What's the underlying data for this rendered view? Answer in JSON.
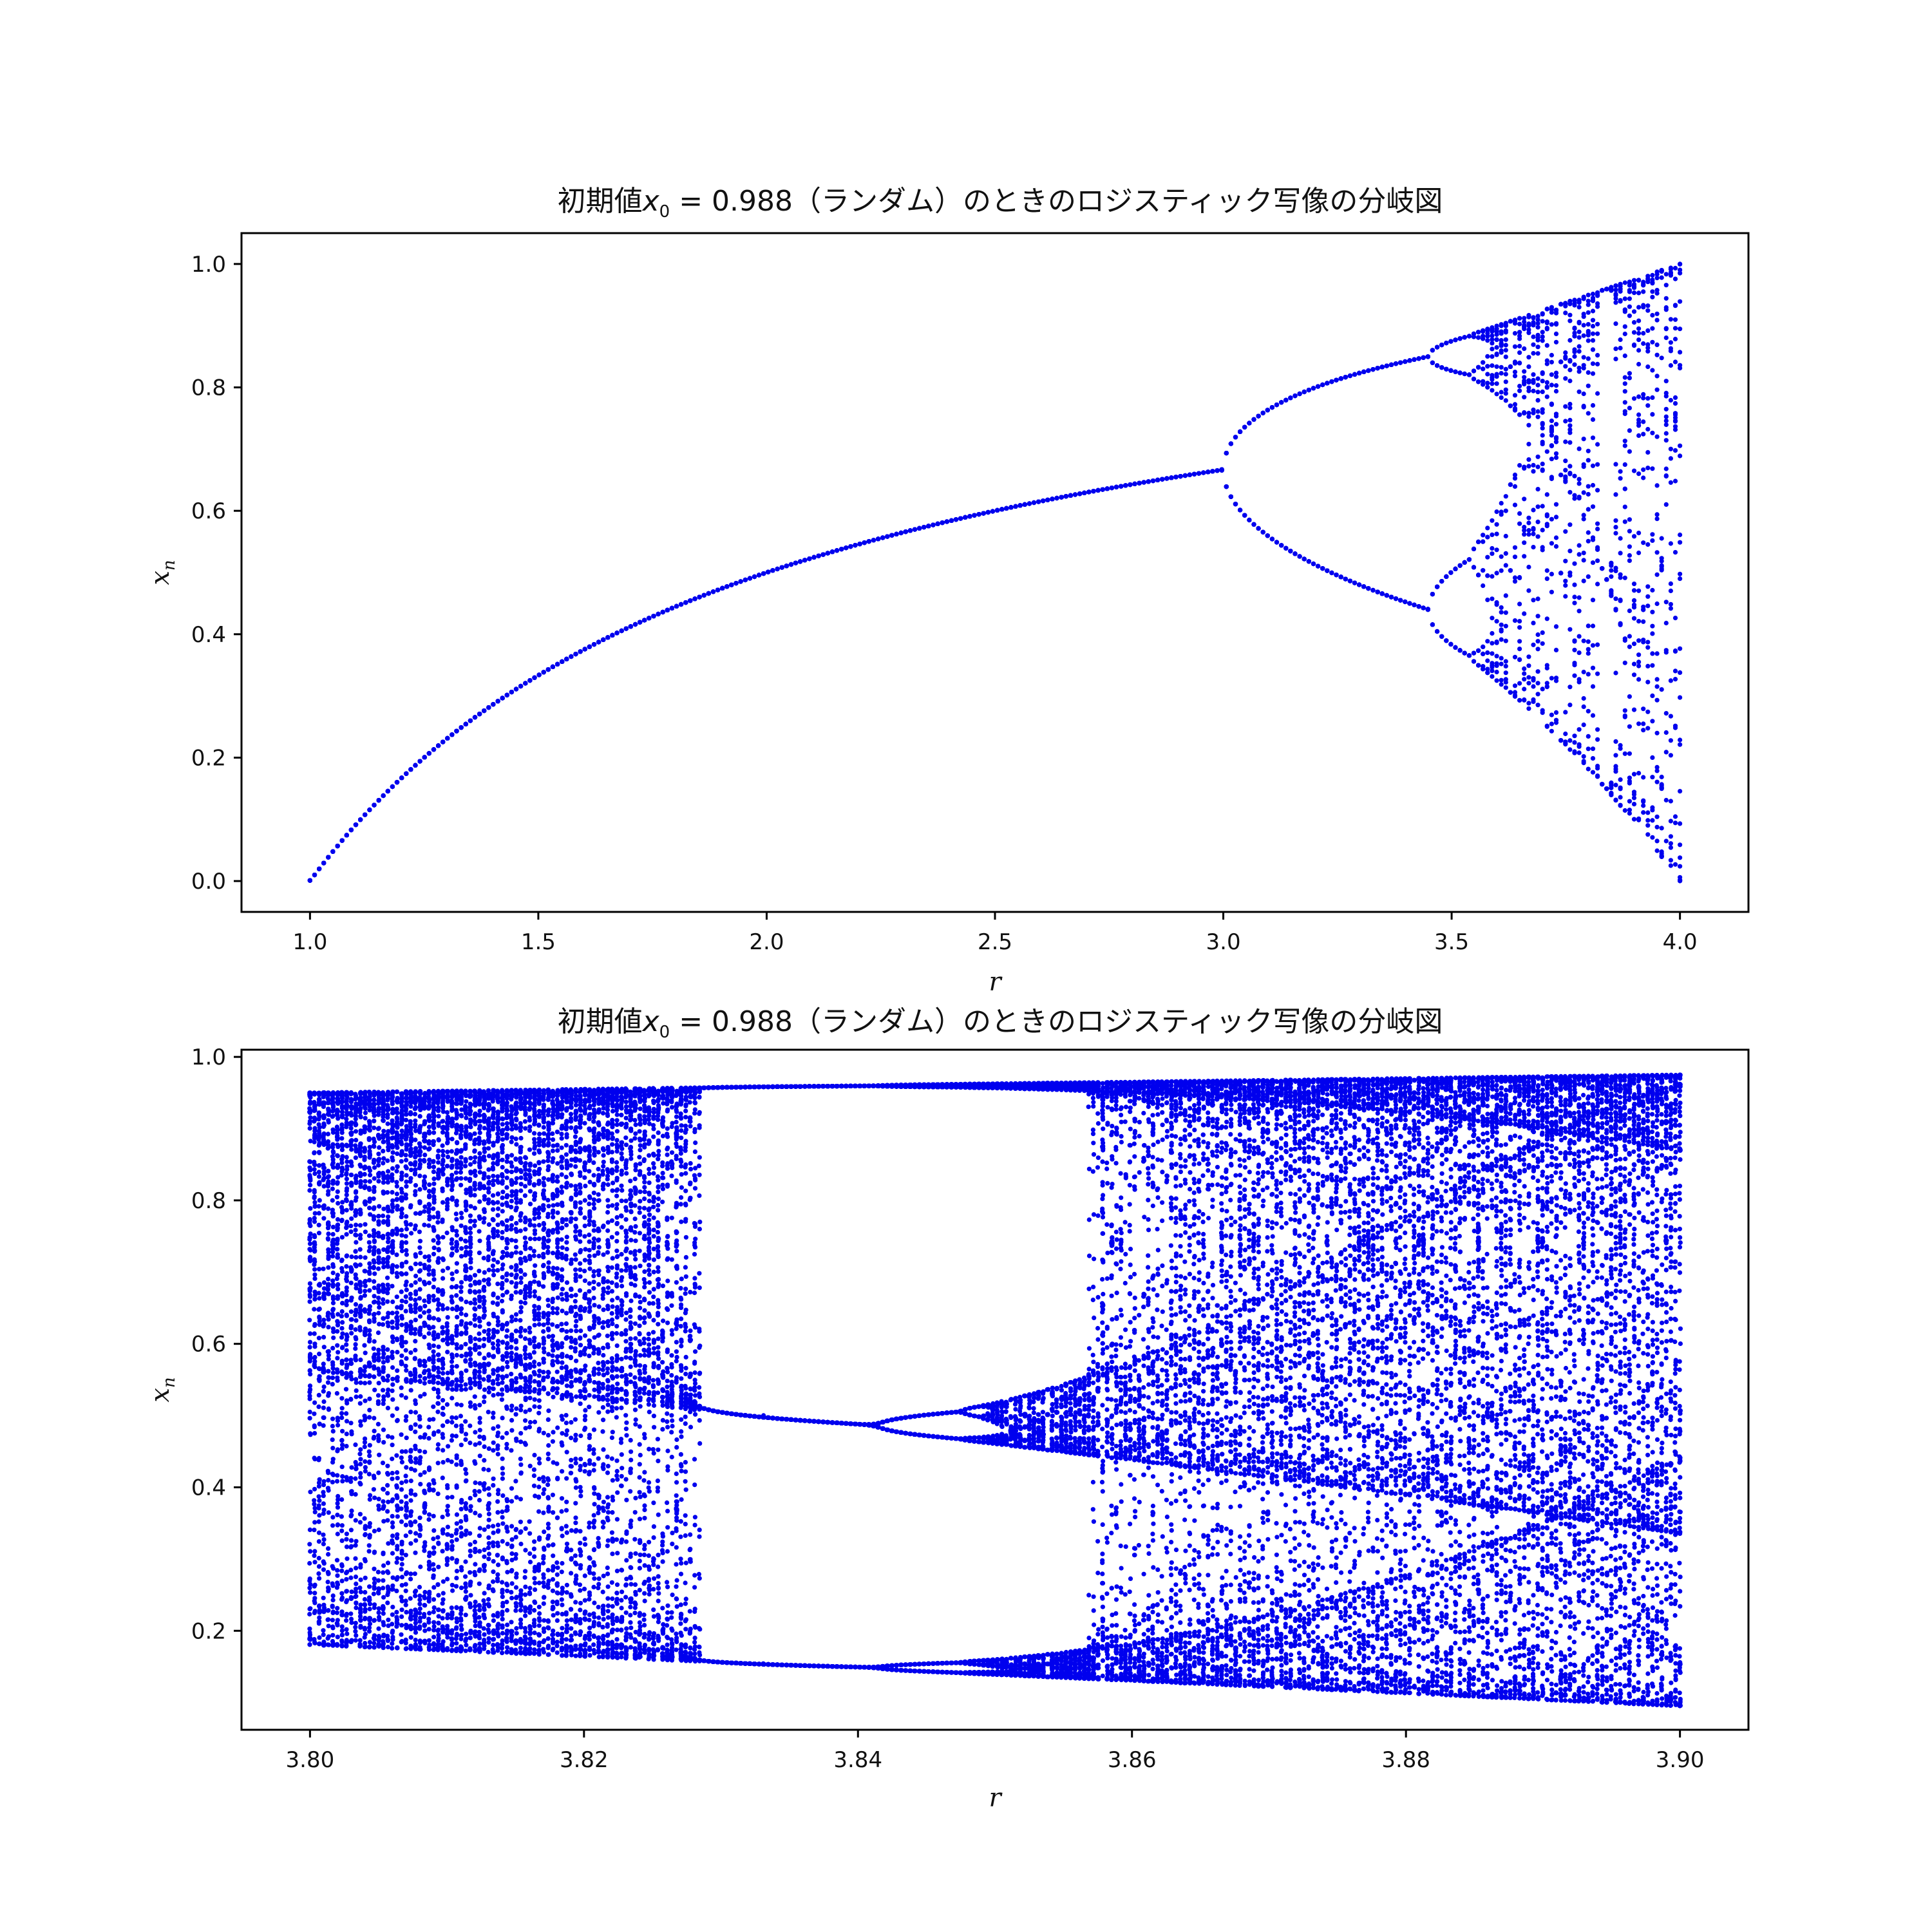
{
  "colors": {
    "points": "#0000ee",
    "frame": "#000000",
    "background": "#ffffff"
  },
  "chart_data": [
    {
      "type": "scatter",
      "title_prefix": "初期値",
      "title_var": "x",
      "title_sub": "0",
      "title_suffix": " = 0.988（ランダム）のときのロジスティック写像の分岐図",
      "xlabel": "r",
      "ylabel_var": "x",
      "ylabel_sub": "n",
      "xlim": [
        0.85,
        4.15
      ],
      "ylim": [
        -0.05,
        1.05
      ],
      "xticks": [
        1.0,
        1.5,
        2.0,
        2.5,
        3.0,
        3.5,
        4.0
      ],
      "xtick_labels": [
        "1.0",
        "1.5",
        "2.0",
        "2.5",
        "3.0",
        "3.5",
        "4.0"
      ],
      "yticks": [
        0.0,
        0.2,
        0.4,
        0.6,
        0.8,
        1.0
      ],
      "ytick_labels": [
        "0.0",
        "0.2",
        "0.4",
        "0.6",
        "0.8",
        "1.0"
      ],
      "series": {
        "model": "logistic map x(n+1) = r*x(n)*(1-x(n))",
        "x0": 0.988,
        "r_range": [
          1.0,
          4.0
        ],
        "r_count": 300
      }
    },
    {
      "type": "scatter",
      "title_prefix": "初期値",
      "title_var": "x",
      "title_sub": "0",
      "title_suffix": " = 0.988（ランダム）のときのロジスティック写像の分岐図",
      "xlabel": "r",
      "ylabel_var": "x",
      "ylabel_sub": "n",
      "xlim": [
        3.795,
        3.905
      ],
      "ylim": [
        0.062,
        1.01
      ],
      "xticks": [
        3.8,
        3.82,
        3.84,
        3.86,
        3.88,
        3.9
      ],
      "xtick_labels": [
        "3.80",
        "3.82",
        "3.84",
        "3.86",
        "3.88",
        "3.90"
      ],
      "yticks": [
        0.2,
        0.4,
        0.6,
        0.8,
        1.0
      ],
      "ytick_labels": [
        "0.2",
        "0.4",
        "0.6",
        "0.8",
        "1.0"
      ],
      "series": {
        "model": "logistic map x(n+1) = r*x(n)*(1-x(n))",
        "x0": 0.988,
        "r_range": [
          3.8,
          3.9
        ],
        "r_count": 300
      }
    }
  ]
}
